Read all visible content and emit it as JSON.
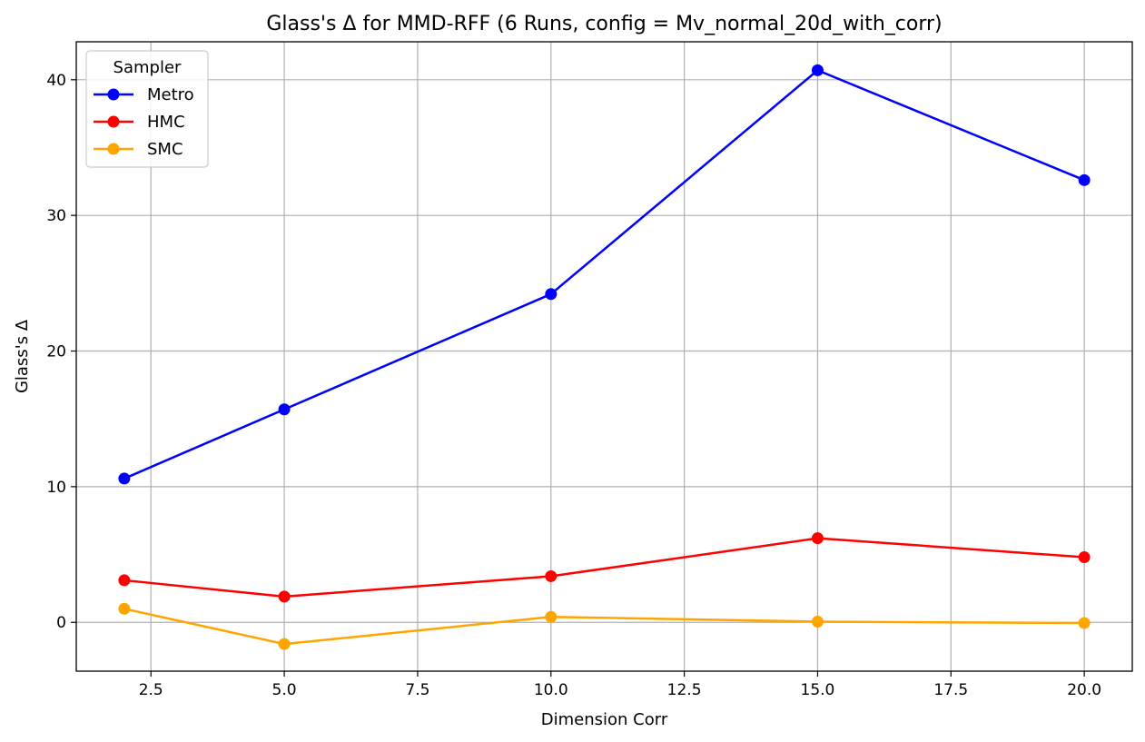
{
  "chart_data": {
    "type": "line",
    "title": "Glass's Δ for MMD-RFF (6 Runs, config = Mv_normal_20d_with_corr)",
    "xlabel": "Dimension Corr",
    "ylabel": "Glass's Δ",
    "x": [
      2,
      5,
      10,
      15,
      20
    ],
    "xlim": [
      1.1,
      20.9
    ],
    "ylim": [
      -3.6,
      42.8
    ],
    "xticks": [
      2.5,
      5.0,
      7.5,
      10.0,
      12.5,
      15.0,
      17.5,
      20.0
    ],
    "xtick_labels": [
      "2.5",
      "5.0",
      "7.5",
      "10.0",
      "12.5",
      "15.0",
      "17.5",
      "20.0"
    ],
    "yticks": [
      0,
      10,
      20,
      30,
      40
    ],
    "ytick_labels": [
      "0",
      "10",
      "20",
      "30",
      "40"
    ],
    "grid": true,
    "legend": {
      "title": "Sampler",
      "placement": "top-left"
    },
    "series": [
      {
        "name": "Metro",
        "color": "#0000ff",
        "values": [
          10.6,
          15.7,
          24.2,
          40.7,
          32.6
        ]
      },
      {
        "name": "HMC",
        "color": "#ff0000",
        "values": [
          3.1,
          1.9,
          3.4,
          6.2,
          4.8
        ]
      },
      {
        "name": "SMC",
        "color": "#ffa500",
        "values": [
          1.0,
          -1.6,
          0.4,
          0.05,
          -0.05
        ]
      }
    ]
  }
}
